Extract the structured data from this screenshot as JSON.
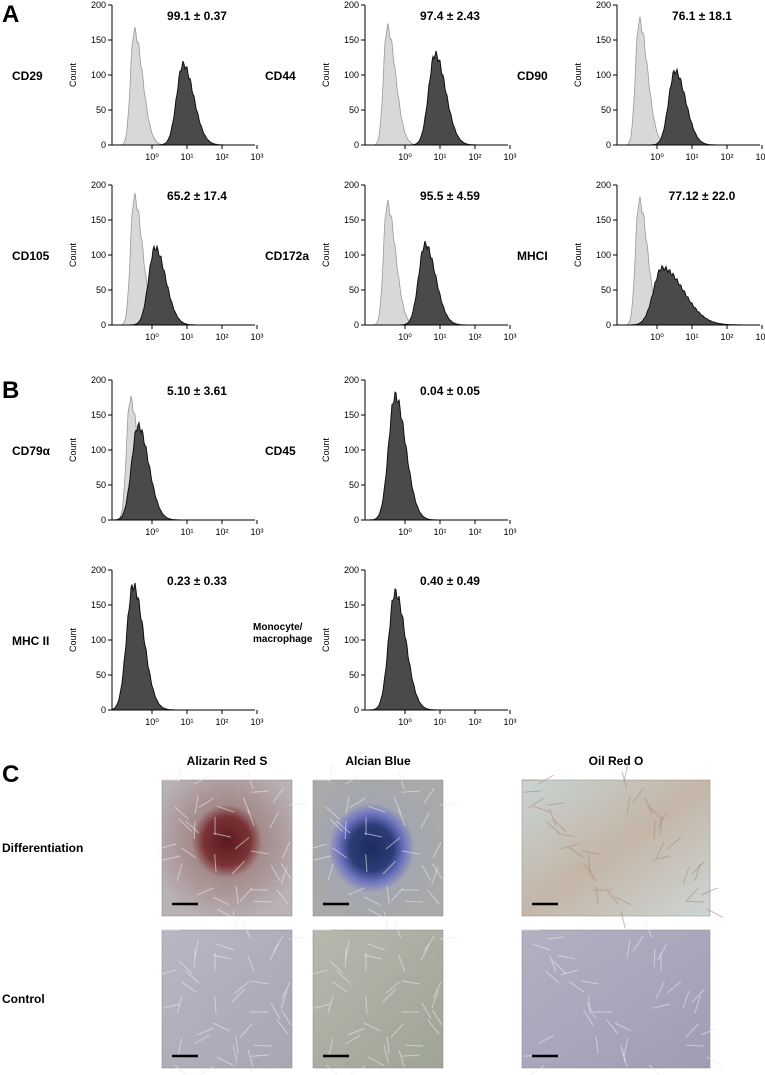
{
  "axes": {
    "ylabel": "Count",
    "yticks": [
      0,
      50,
      100,
      150,
      200
    ],
    "xtick_labels": [
      "10⁰",
      "10¹",
      "10²",
      "10³"
    ]
  },
  "panels": [
    {
      "label": "A",
      "plots": [
        {
          "marker": "CD29",
          "stat": "99.1 ± 0.37"
        },
        {
          "marker": "CD44",
          "stat": "97.4 ± 2.43"
        },
        {
          "marker": "CD90",
          "stat": "76.1 ± 18.1"
        },
        {
          "marker": "CD105",
          "stat": "65.2 ± 17.4"
        },
        {
          "marker": "CD172a",
          "stat": "95.5 ± 4.59"
        },
        {
          "marker": "MHCI",
          "stat": "77.12 ± 22.0"
        }
      ]
    },
    {
      "label": "B",
      "plots": [
        {
          "marker": "CD79α",
          "stat": "5.10 ± 3.61"
        },
        {
          "marker": "CD45",
          "stat": "0.04 ± 0.05"
        },
        {
          "marker": "MHC II",
          "stat": "0.23 ± 0.33"
        },
        {
          "marker": [
            "Monocyte/",
            "macrophage"
          ],
          "stat": "0.40 ± 0.49"
        }
      ]
    },
    {
      "label": "C",
      "columns": [
        "Alizarin Red S",
        "Alcian Blue",
        "Oil Red O"
      ],
      "rows": [
        "Differentiation",
        "Control"
      ]
    }
  ]
}
